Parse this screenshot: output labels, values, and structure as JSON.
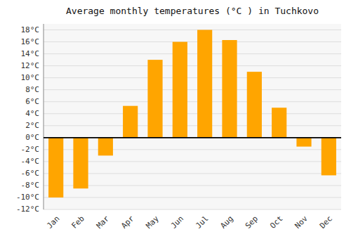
{
  "chart_data": {
    "type": "bar",
    "title": "Average monthly temperatures (°C ) in Tuchkovo",
    "categories": [
      "Jan",
      "Feb",
      "Mar",
      "Apr",
      "May",
      "Jun",
      "Jul",
      "Aug",
      "Sep",
      "Oct",
      "Nov",
      "Dec"
    ],
    "values": [
      -10,
      -8.5,
      -3,
      5.3,
      13,
      16,
      18,
      16.3,
      11,
      5,
      -1.5,
      -6.3
    ],
    "color": "#FFA500",
    "ylim": [
      -12,
      19
    ],
    "yticks": [
      {
        "value": -12,
        "label": "-12°C"
      },
      {
        "value": -10,
        "label": "-10°C"
      },
      {
        "value": -8,
        "label": "-8°C"
      },
      {
        "value": -6,
        "label": "-6°C"
      },
      {
        "value": -4,
        "label": "-4°C"
      },
      {
        "value": -2,
        "label": "-2°C"
      },
      {
        "value": 0,
        "label": "0°C"
      },
      {
        "value": 2,
        "label": "2°C"
      },
      {
        "value": 4,
        "label": "4°C"
      },
      {
        "value": 6,
        "label": "6°C"
      },
      {
        "value": 8,
        "label": "8°C"
      },
      {
        "value": 10,
        "label": "10°C"
      },
      {
        "value": 12,
        "label": "12°C"
      },
      {
        "value": 14,
        "label": "14°C"
      },
      {
        "value": 16,
        "label": "16°C"
      },
      {
        "value": 18,
        "label": "18°C"
      }
    ],
    "grid": true
  }
}
